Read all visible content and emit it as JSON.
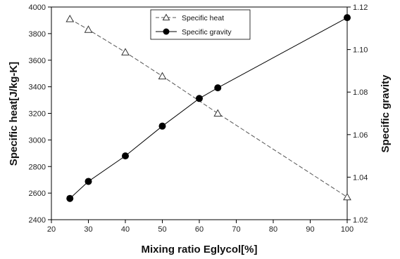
{
  "chart_data": {
    "type": "line",
    "title": "",
    "xlabel": "Mixing ratio Eglycol[%]",
    "ylabel": "Specific heat[J/kg-K]",
    "y2label": "Specific gravity",
    "xlim": [
      20,
      100
    ],
    "ylim": [
      2400,
      4000
    ],
    "y2lim": [
      1.02,
      1.12
    ],
    "xticks": [
      "20",
      "30",
      "40",
      "50",
      "60",
      "70",
      "80",
      "90",
      "100"
    ],
    "yticks": [
      "2400",
      "2600",
      "2800",
      "3000",
      "3200",
      "3400",
      "3600",
      "3800",
      "4000"
    ],
    "y2ticks": [
      "1.02",
      "1.04",
      "1.06",
      "1.08",
      "1.10",
      "1.12"
    ],
    "grid": false,
    "legend_position": "top-center",
    "series": [
      {
        "name": "Specific heat",
        "axis": "left",
        "marker": "open-triangle",
        "line_style": "dashed",
        "color": "#555555",
        "x": [
          25,
          30,
          40,
          50,
          65,
          100
        ],
        "values": [
          3910,
          3830,
          3660,
          3480,
          3200,
          2570
        ]
      },
      {
        "name": "Specific gravity",
        "axis": "right",
        "marker": "filled-circle",
        "line_style": "solid",
        "color": "#000000",
        "x": [
          25,
          30,
          40,
          50,
          60,
          65,
          100
        ],
        "values": [
          1.03,
          1.038,
          1.05,
          1.064,
          1.077,
          1.082,
          1.115
        ]
      }
    ]
  }
}
